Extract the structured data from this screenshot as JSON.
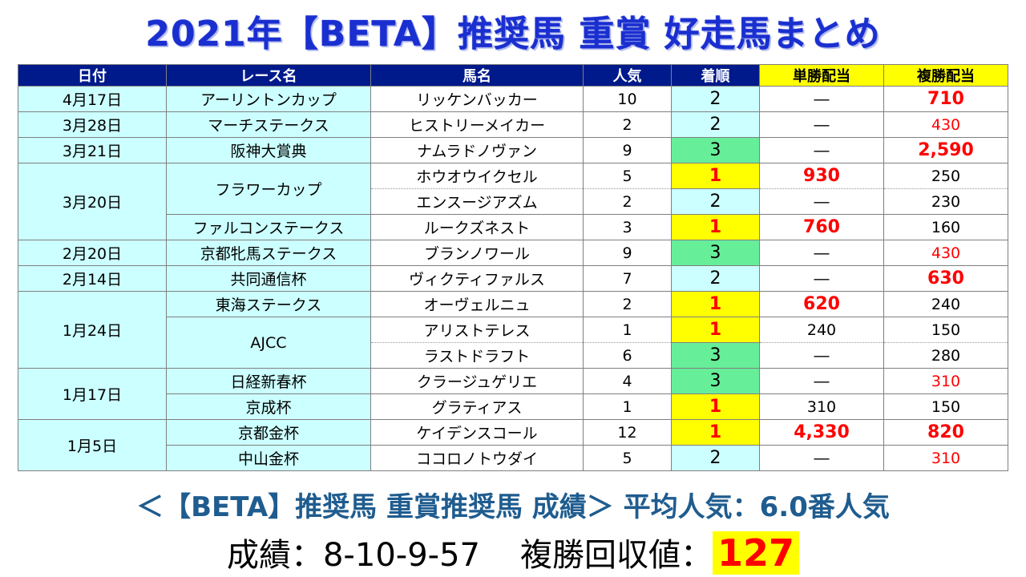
{
  "title": "2021年【BETA】推奨馬 重賞 好走馬まとめ",
  "headers": {
    "date": "日付",
    "race": "レース名",
    "horse": "馬名",
    "pop": "人気",
    "rank": "着順",
    "win": "単勝配当",
    "place": "複勝配当"
  },
  "rows": [
    {
      "date": "4月17日",
      "race": "アーリントンカップ",
      "horse": "リッケンバッカー",
      "pop": "10",
      "rank": "2",
      "win": "―",
      "place": "710"
    },
    {
      "date": "3月28日",
      "race": "マーチステークス",
      "horse": "ヒストリーメイカー",
      "pop": "2",
      "rank": "2",
      "win": "―",
      "place": "430"
    },
    {
      "date": "3月21日",
      "race": "阪神大賞典",
      "horse": "ナムラドノヴァン",
      "pop": "9",
      "rank": "3",
      "win": "―",
      "place": "2,590"
    },
    {
      "date": "3月20日",
      "race": "フラワーカップ",
      "horse": "ホウオウイクセル",
      "pop": "5",
      "rank": "1",
      "win": "930",
      "place": "250"
    },
    {
      "date": "",
      "race": "",
      "horse": "エンスージアズム",
      "pop": "2",
      "rank": "2",
      "win": "―",
      "place": "230"
    },
    {
      "date": "",
      "race": "ファルコンステークス",
      "horse": "ルークズネスト",
      "pop": "3",
      "rank": "1",
      "win": "760",
      "place": "160"
    },
    {
      "date": "2月20日",
      "race": "京都牝馬ステークス",
      "horse": "ブランノワール",
      "pop": "9",
      "rank": "3",
      "win": "―",
      "place": "430"
    },
    {
      "date": "2月14日",
      "race": "共同通信杯",
      "horse": "ヴィクティファルス",
      "pop": "7",
      "rank": "2",
      "win": "―",
      "place": "630"
    },
    {
      "date": "1月24日",
      "race": "東海ステークス",
      "horse": "オーヴェルニュ",
      "pop": "2",
      "rank": "1",
      "win": "620",
      "place": "240"
    },
    {
      "date": "",
      "race": "AJCC",
      "horse": "アリストテレス",
      "pop": "1",
      "rank": "1",
      "win": "240",
      "place": "150"
    },
    {
      "date": "",
      "race": "",
      "horse": "ラストドラフト",
      "pop": "6",
      "rank": "3",
      "win": "―",
      "place": "280"
    },
    {
      "date": "1月17日",
      "race": "日経新春杯",
      "horse": "クラージュゲリエ",
      "pop": "4",
      "rank": "3",
      "win": "―",
      "place": "310"
    },
    {
      "date": "",
      "race": "京成杯",
      "horse": "グラティアス",
      "pop": "1",
      "rank": "1",
      "win": "310",
      "place": "150"
    },
    {
      "date": "1月5日",
      "race": "京都金杯",
      "horse": "ケイデンスコール",
      "pop": "12",
      "rank": "1",
      "win": "4,330",
      "place": "820"
    },
    {
      "date": "",
      "race": "中山金杯",
      "horse": "ココロノトウダイ",
      "pop": "5",
      "rank": "2",
      "win": "―",
      "place": "310"
    }
  ],
  "summary": {
    "line1": "＜【BETA】推奨馬 重賞推奨馬 成績＞ 平均人気：6.0番人気",
    "record": "成績：8-10-9-57",
    "return_label": "複勝回収値：",
    "return_value": "127"
  },
  "colors": {
    "header_bg": "#001a8c",
    "header_highlight": "#ffff00",
    "cell_cyan": "#ccffff",
    "rank1_bg": "#ffff00",
    "rank3_bg": "#66ee99",
    "red_text": "#ff0000"
  }
}
